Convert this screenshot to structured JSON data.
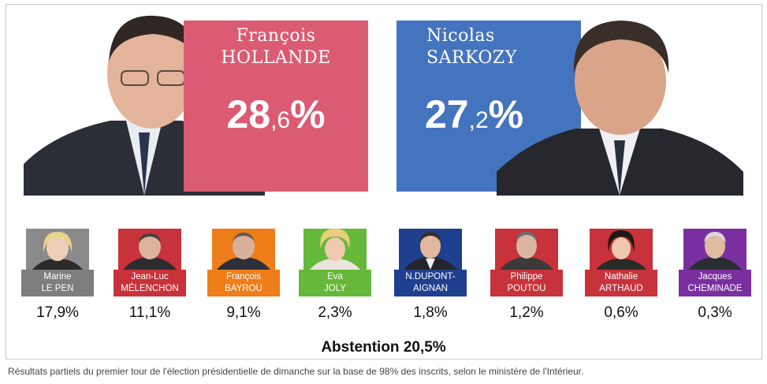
{
  "leaders": [
    {
      "first": "François",
      "last": "HOLLANDE",
      "score_int": "28",
      "score_dec": ",6",
      "score_pct": "%",
      "value": 28.6,
      "color": "#db5b72"
    },
    {
      "first": "Nicolas",
      "last": "SARKOZY",
      "score_int": "27",
      "score_dec": ",2",
      "score_pct": "%",
      "value": 27.2,
      "color": "#4574bf"
    }
  ],
  "candidates": [
    {
      "line1": "Marine",
      "line2": "LE PEN",
      "score": "17,9%",
      "value": 17.9,
      "color": "#7e7e7e"
    },
    {
      "line1": "Jean-Luc",
      "line2": "MÉLENCHON",
      "score": "11,1%",
      "value": 11.1,
      "color": "#c8323a"
    },
    {
      "line1": "François",
      "line2": "BAYROU",
      "score": "9,1%",
      "value": 9.1,
      "color": "#ef7d19"
    },
    {
      "line1": "Eva",
      "line2": "JOLY",
      "score": "2,3%",
      "value": 2.3,
      "color": "#66b83a"
    },
    {
      "line1": "N.DUPONT-",
      "line2": "AIGNAN",
      "score": "1,8%",
      "value": 1.8,
      "color": "#1f3f8f"
    },
    {
      "line1": "Philippe",
      "line2": "POUTOU",
      "score": "1,2%",
      "value": 1.2,
      "color": "#c8323a"
    },
    {
      "line1": "Nathalie",
      "line2": "ARTHAUD",
      "score": "0,6%",
      "value": 0.6,
      "color": "#c8323a"
    },
    {
      "line1": "Jacques",
      "line2": "CHEMINADE",
      "score": "0,3%",
      "value": 0.3,
      "color": "#7a2fa0"
    }
  ],
  "abstention": {
    "label": "Abstention",
    "value": "20,5%"
  },
  "caption": "Résultats partiels du premier tour de l'élection présidentielle de dimanche sur la base de 98% des inscrits, selon le ministère de l'Intérieur.",
  "chart_data": {
    "type": "bar",
    "categories": [
      "HOLLANDE",
      "SARKOZY",
      "LE PEN",
      "MÉLENCHON",
      "BAYROU",
      "JOLY",
      "DUPONT-AIGNAN",
      "POUTOU",
      "ARTHAUD",
      "CHEMINADE"
    ],
    "values": [
      28.6,
      27.2,
      17.9,
      11.1,
      9.1,
      2.3,
      1.8,
      1.2,
      0.6,
      0.3
    ],
    "title": ""
  }
}
